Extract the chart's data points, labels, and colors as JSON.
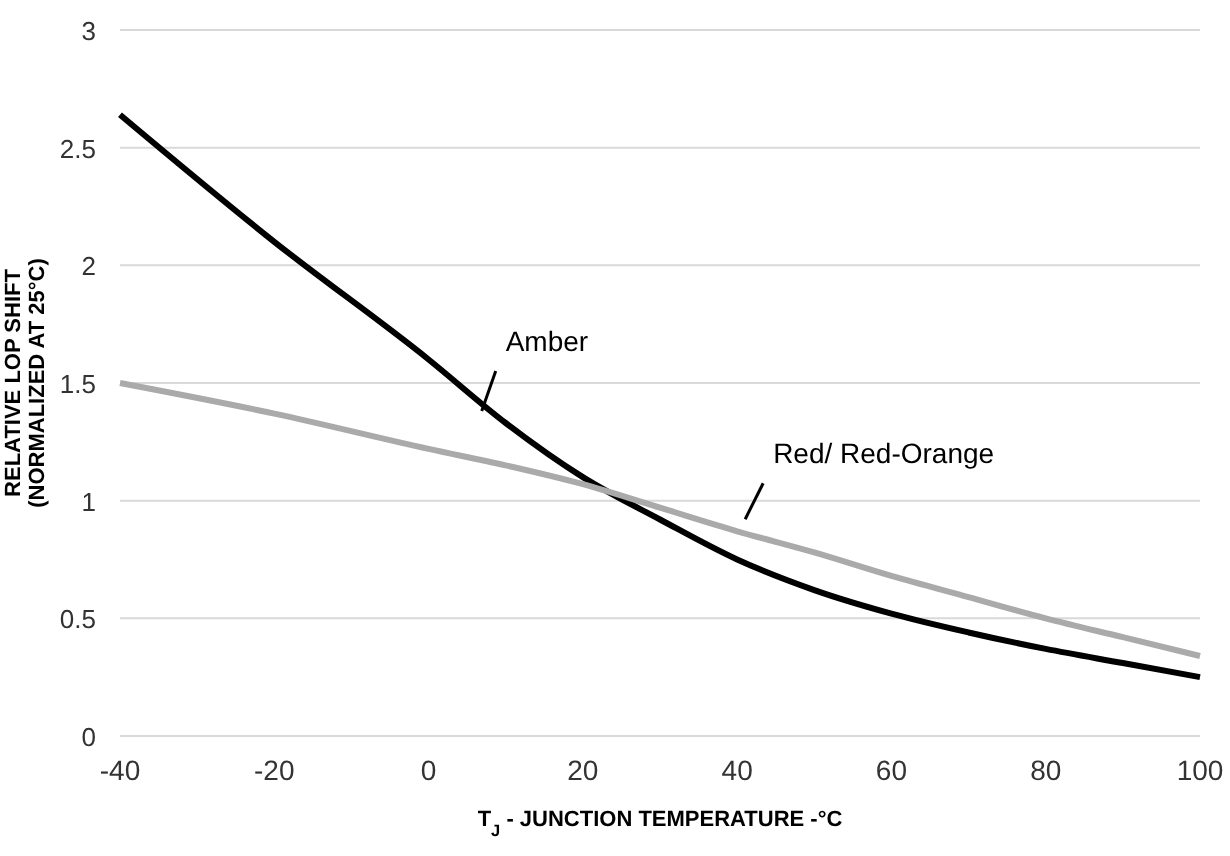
{
  "chart_data": {
    "type": "line",
    "xlabel": "T$_{J}$ - JUNCTION TEMPERATURE -°C",
    "ylabel": "RELATIVE LOP SHIFT\n(NORMALIZED AT 25°C)",
    "xlim": [
      -40,
      100
    ],
    "xticks": [
      -40,
      -20,
      0,
      20,
      40,
      60,
      80,
      100
    ],
    "ylim": [
      0,
      3
    ],
    "yticks": [
      0,
      0.5,
      1,
      1.5,
      2,
      2.5,
      3
    ],
    "grid": "y",
    "legend": false,
    "marker": "none",
    "line_style": "solid",
    "x": [
      -40,
      -20,
      0,
      10,
      20,
      30,
      40,
      50,
      60,
      70,
      80,
      90,
      100
    ],
    "series": [
      {
        "name": "Amber",
        "color": "#000000",
        "values": [
          2.64,
          2.1,
          1.6,
          1.33,
          1.1,
          0.92,
          0.75,
          0.62,
          0.52,
          0.44,
          0.37,
          0.31,
          0.25
        ]
      },
      {
        "name": "Red/ Red-Orange",
        "color": "#aaaaaa",
        "values": [
          1.5,
          1.37,
          1.22,
          1.15,
          1.07,
          0.97,
          0.87,
          0.78,
          0.68,
          0.59,
          0.5,
          0.42,
          0.34
        ]
      }
    ]
  }
}
